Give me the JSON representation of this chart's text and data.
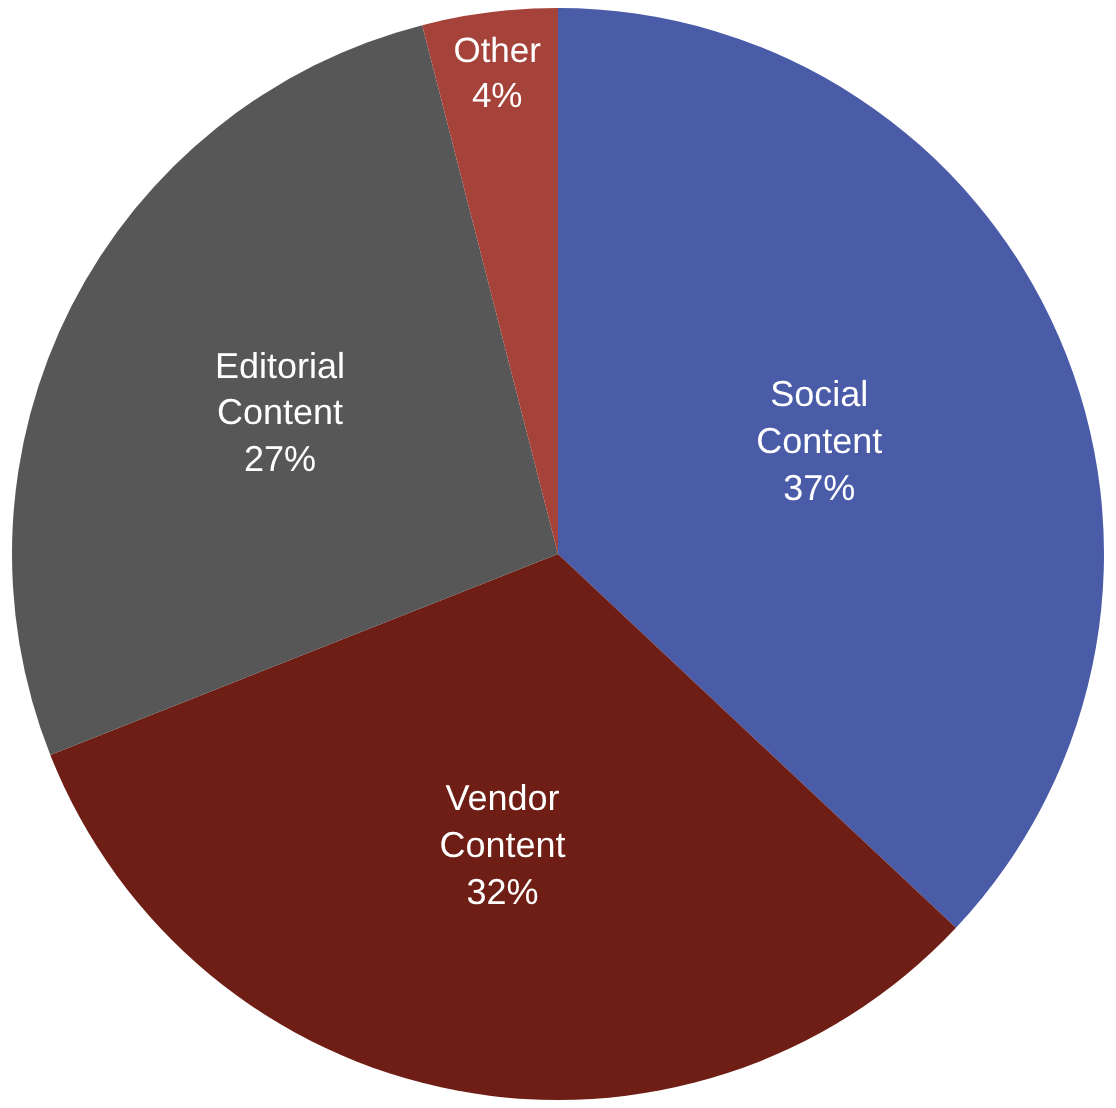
{
  "chart_data": {
    "type": "pie",
    "categories": [
      "Social Content",
      "Vendor Content",
      "Editorial Content",
      "Other"
    ],
    "values": [
      37,
      32,
      27,
      4
    ],
    "colors": [
      "#4a5ca8",
      "#6e1e14",
      "#575757",
      "#a5423a"
    ],
    "value_labels": [
      "37%",
      "32%",
      "27%",
      "4%"
    ],
    "legend": false
  }
}
